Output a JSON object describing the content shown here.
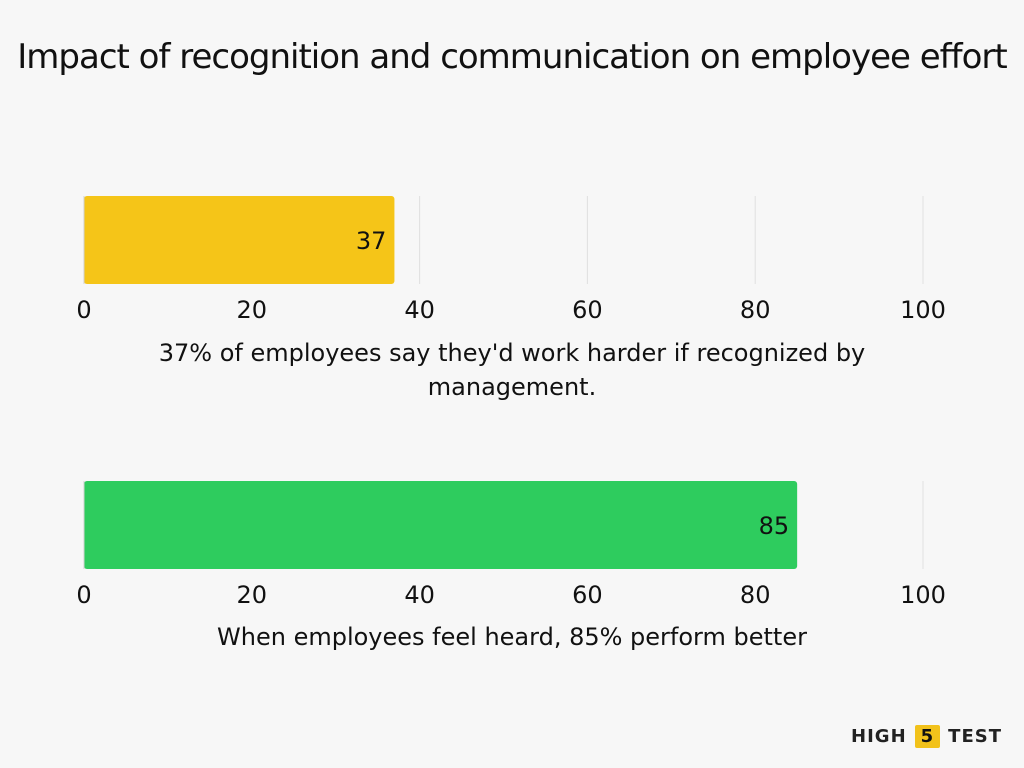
{
  "title": "Impact of recognition and communication on employee effort",
  "chart_data": [
    {
      "type": "bar",
      "orientation": "horizontal",
      "values": [
        37
      ],
      "data_labels": [
        "37"
      ],
      "color": "#f5c518",
      "xlim": [
        0,
        100
      ],
      "xticks": [
        0,
        20,
        40,
        60,
        80,
        100
      ],
      "xtick_labels": [
        "0",
        "20",
        "40",
        "60",
        "80",
        "100"
      ],
      "grid": true,
      "caption": "37% of employees say they'd work harder if recognized by management."
    },
    {
      "type": "bar",
      "orientation": "horizontal",
      "values": [
        85
      ],
      "data_labels": [
        "85"
      ],
      "color": "#2ecc5e",
      "xlim": [
        0,
        100
      ],
      "xticks": [
        0,
        20,
        40,
        60,
        80,
        100
      ],
      "xtick_labels": [
        "0",
        "20",
        "40",
        "60",
        "80",
        "100"
      ],
      "grid": true,
      "caption": "When employees feel heard, 85% perform better"
    }
  ],
  "logo": {
    "left": "HIGH",
    "middle": "5",
    "right": "TEST",
    "accent_color": "#f2c21b"
  }
}
